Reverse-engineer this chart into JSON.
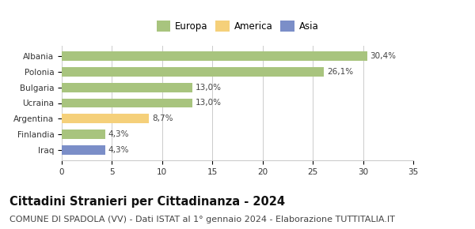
{
  "categories": [
    "Iraq",
    "Finlandia",
    "Argentina",
    "Ucraina",
    "Bulgaria",
    "Polonia",
    "Albania"
  ],
  "values": [
    4.3,
    4.3,
    8.7,
    13.0,
    13.0,
    26.1,
    30.4
  ],
  "labels": [
    "4,3%",
    "4,3%",
    "8,7%",
    "13,0%",
    "13,0%",
    "26,1%",
    "30,4%"
  ],
  "bar_colors": [
    "#7b8ec8",
    "#a8c47e",
    "#f5d07a",
    "#a8c47e",
    "#a8c47e",
    "#a8c47e",
    "#a8c47e"
  ],
  "legend_items": [
    {
      "label": "Europa",
      "color": "#a8c47e"
    },
    {
      "label": "America",
      "color": "#f5d07a"
    },
    {
      "label": "Asia",
      "color": "#7b8ec8"
    }
  ],
  "xlim": [
    0,
    35
  ],
  "xticks": [
    0,
    5,
    10,
    15,
    20,
    25,
    30,
    35
  ],
  "title": "Cittadini Stranieri per Cittadinanza - 2024",
  "subtitle": "COMUNE DI SPADOLA (VV) - Dati ISTAT al 1° gennaio 2024 - Elaborazione TUTTITALIA.IT",
  "title_fontsize": 10.5,
  "subtitle_fontsize": 8,
  "label_fontsize": 7.5,
  "tick_fontsize": 7.5,
  "legend_fontsize": 8.5,
  "background_color": "#ffffff",
  "grid_color": "#cccccc"
}
